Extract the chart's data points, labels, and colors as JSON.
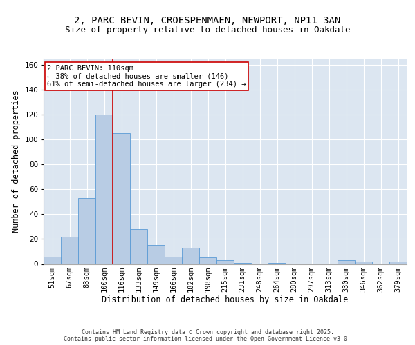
{
  "title1": "2, PARC BEVIN, CROESPENMAEN, NEWPORT, NP11 3AN",
  "title2": "Size of property relative to detached houses in Oakdale",
  "xlabel": "Distribution of detached houses by size in Oakdale",
  "ylabel": "Number of detached properties",
  "categories": [
    "51sqm",
    "67sqm",
    "83sqm",
    "100sqm",
    "116sqm",
    "133sqm",
    "149sqm",
    "166sqm",
    "182sqm",
    "198sqm",
    "215sqm",
    "231sqm",
    "248sqm",
    "264sqm",
    "280sqm",
    "297sqm",
    "313sqm",
    "330sqm",
    "346sqm",
    "362sqm",
    "379sqm"
  ],
  "values": [
    6,
    22,
    53,
    120,
    105,
    28,
    15,
    6,
    13,
    5,
    3,
    1,
    0,
    1,
    0,
    0,
    0,
    3,
    2,
    0,
    2
  ],
  "bar_color": "#b8cce4",
  "bar_edge_color": "#5b9bd5",
  "vline_color": "#cc0000",
  "vline_x_index": 3.5,
  "annotation_text": "2 PARC BEVIN: 110sqm\n← 38% of detached houses are smaller (146)\n61% of semi-detached houses are larger (234) →",
  "annotation_box_facecolor": "#ffffff",
  "annotation_box_edgecolor": "#cc0000",
  "ylim": [
    0,
    165
  ],
  "yticks": [
    0,
    20,
    40,
    60,
    80,
    100,
    120,
    140,
    160
  ],
  "bg_color": "#dce6f1",
  "grid_color": "#ffffff",
  "footer": "Contains HM Land Registry data © Crown copyright and database right 2025.\nContains public sector information licensed under the Open Government Licence v3.0.",
  "title_fontsize": 10,
  "subtitle_fontsize": 9,
  "tick_fontsize": 7.5,
  "label_fontsize": 8.5,
  "footer_fontsize": 6,
  "annot_fontsize": 7.5
}
